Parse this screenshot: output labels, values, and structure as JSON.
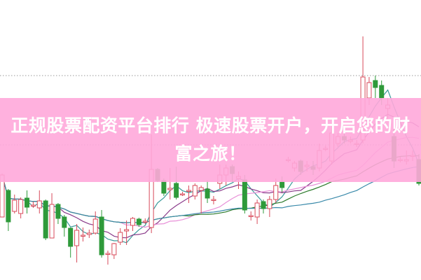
{
  "banner": {
    "title": "正规股票配资平台排行 极速股票开户，开启您的财富之旅！"
  },
  "colors": {
    "banner": "#ffa8da",
    "up": "#d84a5a",
    "down": "#2e9a3a",
    "gridline": "#999999",
    "ma": [
      "#3a9a9a",
      "#8a3a8a",
      "#e890d8",
      "#2a7a2a",
      "#3a8aaa"
    ]
  },
  "chart_data": {
    "type": "candlestick",
    "ylim": [
      0,
      40
    ],
    "grid": "dotted horizontal",
    "reference_lines": [
      29.2,
      19.3
    ],
    "ma_periods": [
      5,
      10,
      20,
      30,
      45
    ],
    "candles": [
      [
        9.0,
        15.2,
        9.0,
        15.0
      ],
      [
        12.8,
        13.0,
        7.0,
        8.3
      ],
      [
        9.8,
        12.2,
        9.5,
        11.4
      ],
      [
        9.5,
        11.8,
        8.8,
        11.5
      ],
      [
        11.7,
        12.8,
        9.5,
        10.4
      ],
      [
        10.7,
        11.2,
        10.3,
        10.7
      ],
      [
        10.3,
        12.8,
        9.5,
        11.3
      ],
      [
        11.3,
        11.5,
        5.7,
        6.0
      ],
      [
        6.0,
        12.4,
        6.0,
        10.8
      ],
      [
        10.8,
        11.0,
        8.0,
        8.8
      ],
      [
        9.0,
        9.3,
        6.2,
        7.5
      ],
      [
        7.4,
        7.5,
        3.2,
        4.8
      ],
      [
        4.9,
        8.0,
        2.5,
        7.1
      ],
      [
        6.4,
        7.5,
        5.5,
        6.4
      ],
      [
        6.5,
        7.2,
        6.0,
        6.7
      ],
      [
        6.7,
        9.8,
        6.5,
        8.7
      ],
      [
        9.0,
        10.0,
        3.2,
        3.6
      ],
      [
        3.8,
        4.2,
        2.2,
        3.8
      ],
      [
        3.6,
        5.3,
        3.0,
        5.2
      ],
      [
        5.4,
        7.4,
        5.0,
        6.8
      ],
      [
        7.0,
        8.5,
        5.0,
        7.2
      ],
      [
        7.8,
        9.0,
        7.0,
        8.8
      ],
      [
        8.7,
        8.9,
        7.6,
        7.9
      ],
      [
        8.4,
        8.8,
        8.0,
        8.4
      ],
      [
        7.5,
        20.8,
        6.7,
        15.8
      ],
      [
        15.8,
        16.0,
        14.0,
        14.2
      ],
      [
        14.2,
        14.5,
        12.0,
        12.4
      ],
      [
        12.9,
        16.0,
        11.5,
        13.1
      ],
      [
        13.8,
        16.2,
        11.5,
        11.8
      ],
      [
        12.3,
        12.6,
        12.0,
        12.3
      ],
      [
        12.8,
        13.5,
        11.0,
        12.8
      ],
      [
        12.0,
        13.8,
        11.5,
        13.5
      ],
      [
        12.8,
        13.5,
        9.5,
        13.2
      ],
      [
        13.0,
        14.2,
        11.0,
        11.7
      ],
      [
        11.5,
        12.0,
        10.8,
        11.5
      ],
      [
        13.8,
        16.5,
        13.0,
        15.0
      ],
      [
        15.0,
        16.5,
        13.5,
        16.0
      ],
      [
        16.2,
        16.5,
        14.0,
        15.2
      ],
      [
        14.5,
        15.5,
        13.0,
        14.8
      ],
      [
        14.3,
        15.0,
        9.5,
        10.0
      ],
      [
        9.2,
        9.8,
        8.5,
        9.2
      ],
      [
        9.0,
        11.5,
        8.0,
        11.0
      ],
      [
        11.2,
        11.5,
        9.5,
        10.2
      ],
      [
        10.2,
        12.0,
        9.0,
        11.5
      ],
      [
        11.5,
        14.5,
        11.0,
        13.5
      ],
      [
        14.0,
        14.8,
        12.5,
        13.2
      ],
      [
        17.2,
        17.6,
        16.8,
        17.2
      ],
      [
        16.0,
        17.0,
        15.5,
        16.7
      ],
      [
        17.0,
        17.2,
        15.0,
        15.5
      ],
      [
        16.2,
        17.0,
        15.5,
        16.4
      ],
      [
        16.2,
        17.0,
        15.0,
        15.8
      ],
      [
        16.0,
        19.5,
        15.5,
        18.5
      ],
      [
        18.8,
        19.2,
        18.4,
        18.8
      ],
      [
        17.0,
        22.0,
        16.5,
        21.0
      ],
      [
        19.5,
        21.0,
        19.0,
        20.5
      ],
      [
        20.5,
        21.0,
        19.5,
        20.0
      ],
      [
        19.8,
        20.5,
        19.5,
        20.0
      ],
      [
        19.5,
        20.0,
        19.0,
        19.5
      ],
      [
        20.0,
        34.8,
        19.5,
        29.0
      ],
      [
        26.0,
        29.0,
        25.0,
        28.2
      ],
      [
        28.5,
        29.2,
        26.0,
        27.5
      ],
      [
        27.8,
        28.5,
        25.0,
        26.0
      ],
      [
        24.5,
        26.0,
        23.0,
        25.0
      ],
      [
        20.5,
        22.0,
        16.0,
        17.0
      ],
      [
        17.2,
        17.6,
        16.8,
        17.2
      ],
      [
        17.0,
        18.5,
        16.5,
        17.2
      ],
      [
        17.8,
        18.5,
        17.0,
        17.8
      ],
      [
        17.2,
        18.0,
        13.5,
        13.8
      ]
    ]
  }
}
